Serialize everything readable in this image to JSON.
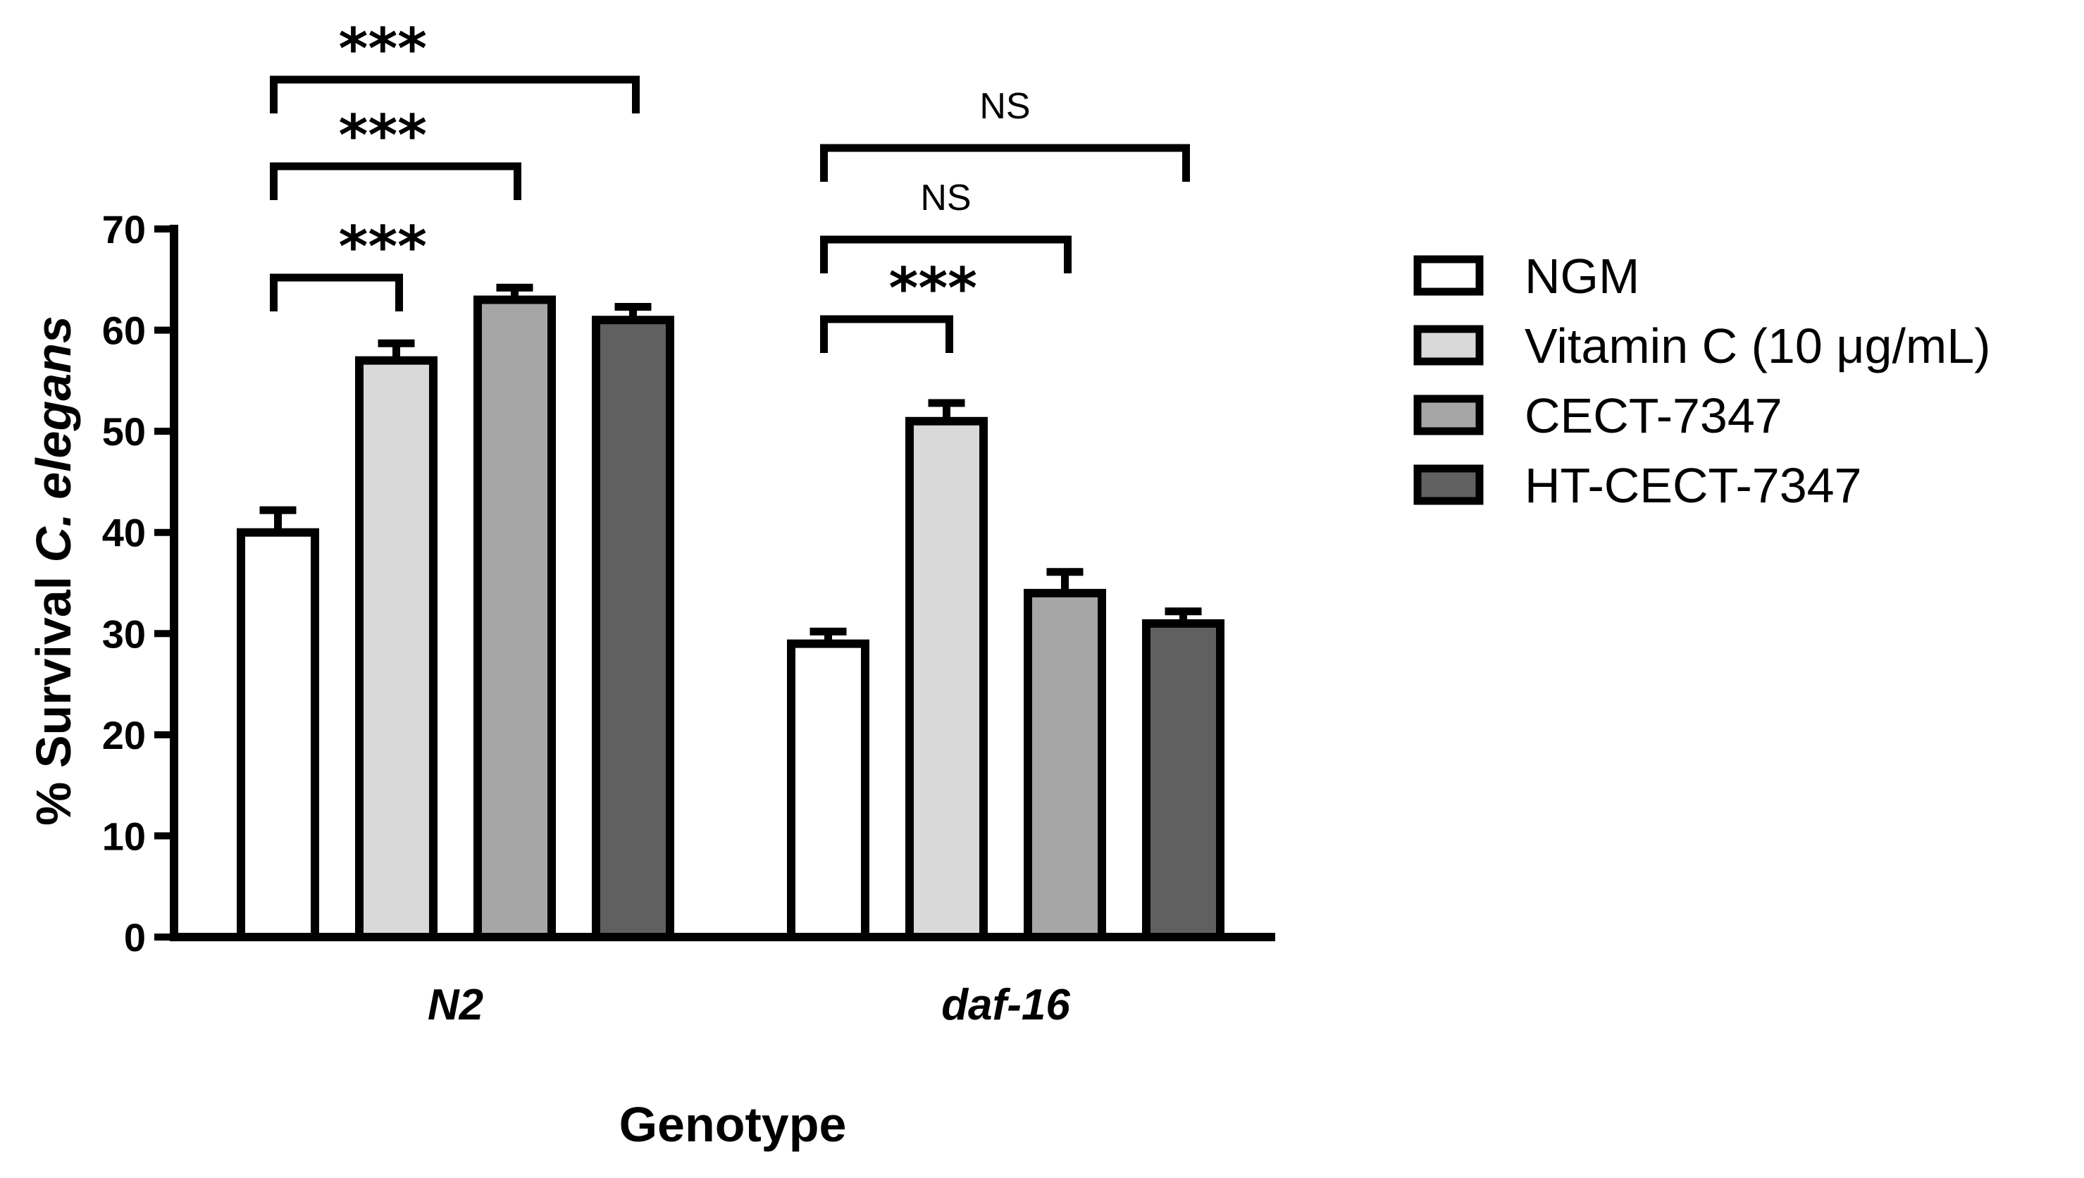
{
  "chart_data": {
    "type": "bar",
    "categories": [
      "N2",
      "daf-16"
    ],
    "series": [
      {
        "name": "NGM",
        "color": "#ffffff",
        "values": [
          40,
          29
        ],
        "errors": [
          2.2,
          1.2
        ]
      },
      {
        "name": "Vitamin C (10 μg/mL)",
        "color": "#d9d9d9",
        "values": [
          57,
          51
        ],
        "errors": [
          1.7,
          1.8
        ]
      },
      {
        "name": "CECT-7347",
        "color": "#a6a6a6",
        "values": [
          63,
          34
        ],
        "errors": [
          1.2,
          2.1
        ]
      },
      {
        "name": "HT-CECT-7347",
        "color": "#606060",
        "values": [
          61,
          31
        ],
        "errors": [
          1.3,
          1.2
        ]
      }
    ],
    "ylabel_prefix": "% Survival ",
    "ylabel_species": "C. elegans",
    "xlabel": "Genotype",
    "ylim": [
      0,
      70
    ],
    "yticks": [
      0,
      10,
      20,
      30,
      40,
      50,
      60,
      70
    ],
    "legend_position": "right",
    "significance": [
      {
        "category": 0,
        "from_series": 0,
        "to_series": 1,
        "label": "***",
        "level": 1
      },
      {
        "category": 0,
        "from_series": 0,
        "to_series": 2,
        "label": "***",
        "level": 2
      },
      {
        "category": 0,
        "from_series": 0,
        "to_series": 3,
        "label": "***",
        "level": 3
      },
      {
        "category": 1,
        "from_series": 0,
        "to_series": 1,
        "label": "***",
        "level": 1
      },
      {
        "category": 1,
        "from_series": 0,
        "to_series": 2,
        "label": "NS",
        "level": 2
      },
      {
        "category": 1,
        "from_series": 0,
        "to_series": 3,
        "label": "NS",
        "level": 3
      }
    ]
  }
}
